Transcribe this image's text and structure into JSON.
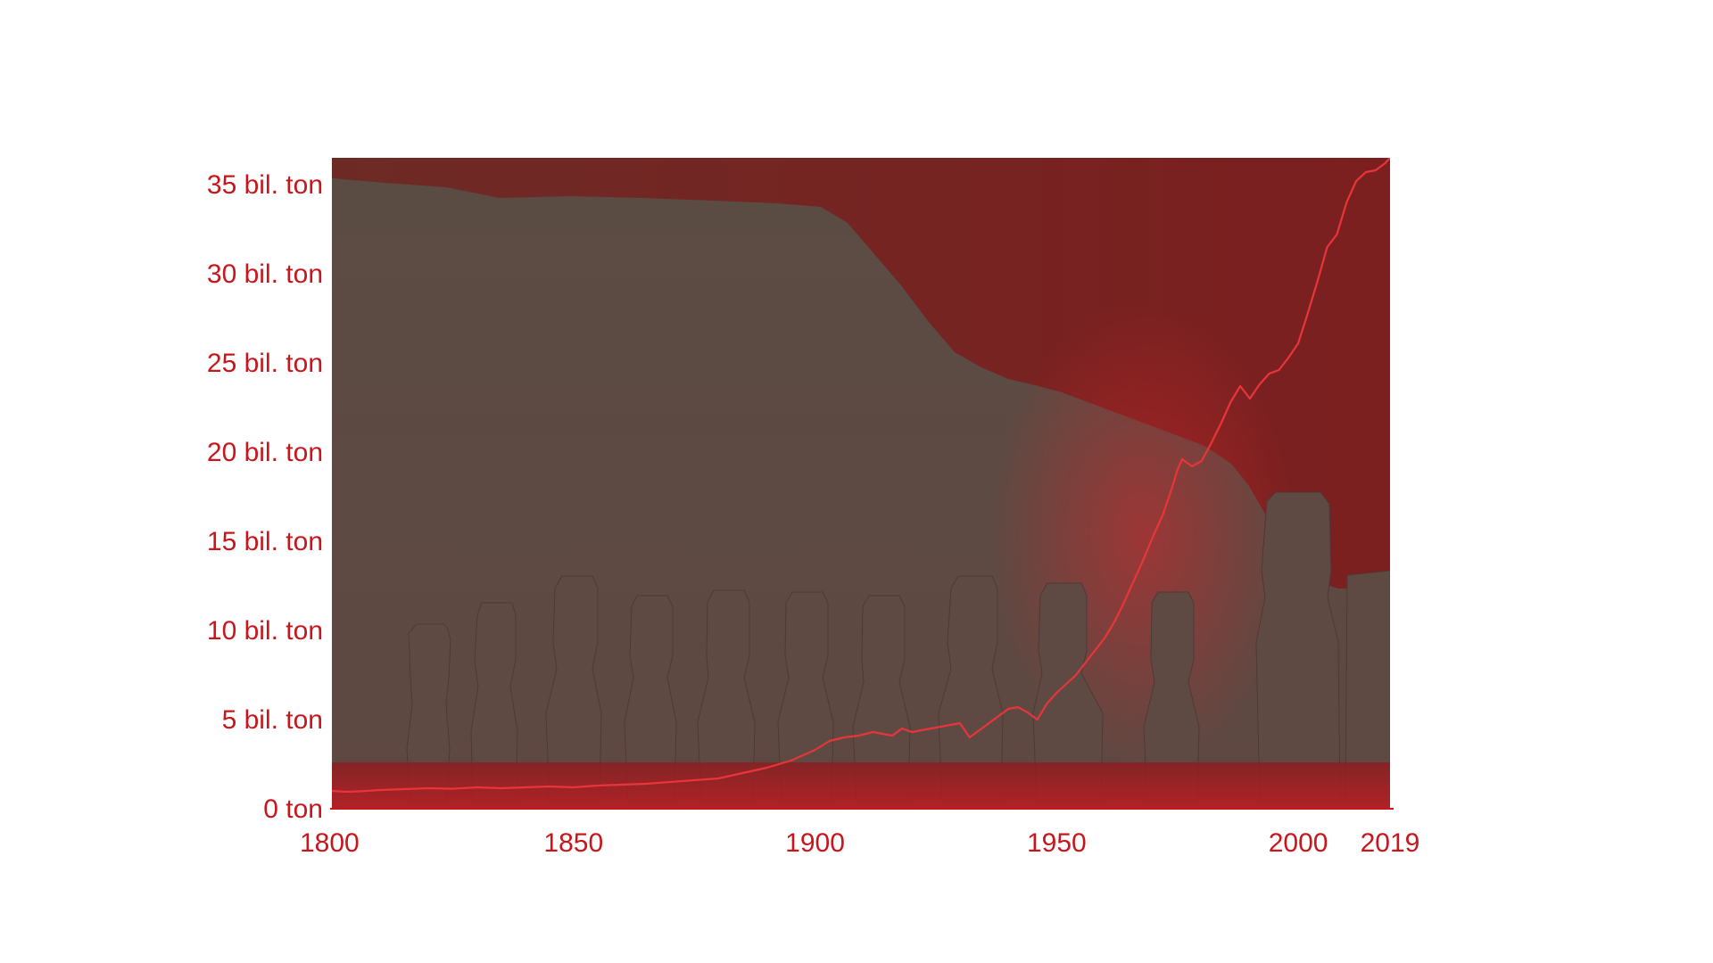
{
  "chart_data": {
    "type": "line",
    "title": "",
    "xlabel": "",
    "ylabel": "",
    "xlim": [
      1800,
      2019
    ],
    "ylim": [
      0,
      36.5
    ],
    "x_ticks": [
      {
        "value": 1800,
        "label": "1800"
      },
      {
        "value": 1850,
        "label": "1850"
      },
      {
        "value": 1900,
        "label": "1900"
      },
      {
        "value": 1950,
        "label": "1950"
      },
      {
        "value": 2000,
        "label": "2000"
      },
      {
        "value": 2019,
        "label": "2019"
      }
    ],
    "y_ticks": [
      {
        "value": 0,
        "label": "0 ton"
      },
      {
        "value": 5,
        "label": "5 bil. ton"
      },
      {
        "value": 10,
        "label": "10 bil. ton"
      },
      {
        "value": 15,
        "label": "15 bil. ton"
      },
      {
        "value": 20,
        "label": "20 bil. ton"
      },
      {
        "value": 25,
        "label": "25 bil. ton"
      },
      {
        "value": 30,
        "label": "30 bil. ton"
      },
      {
        "value": 35,
        "label": "35 bil. ton"
      }
    ],
    "grid": false,
    "legend": "none",
    "background": "photo of moai statues on Easter Island, tinted red",
    "colors": {
      "line": "#e8353a",
      "tick_text": "#c8161d",
      "tint_dark": "#7a2020",
      "tint_mid": "#5a4a42",
      "tint_bright": "#b81c22"
    },
    "series": [
      {
        "x": [
          1800,
          1803,
          1806,
          1810,
          1815,
          1820,
          1825,
          1830,
          1835,
          1840,
          1845,
          1850,
          1855,
          1860,
          1865,
          1870,
          1875,
          1880,
          1885,
          1890,
          1895,
          1900,
          1903,
          1906,
          1909,
          1912,
          1914,
          1916,
          1918,
          1920,
          1922,
          1924,
          1926,
          1928,
          1930,
          1932,
          1934,
          1936,
          1938,
          1940,
          1942,
          1944,
          1946,
          1948,
          1950,
          1952,
          1954,
          1956,
          1958,
          1960,
          1962,
          1964,
          1966,
          1968,
          1970,
          1972,
          1974,
          1975,
          1976,
          1978,
          1980,
          1982,
          1984,
          1986,
          1988,
          1990,
          1992,
          1994,
          1996,
          1998,
          2000,
          2002,
          2004,
          2006,
          2008,
          2010,
          2012,
          2014,
          2016,
          2018,
          2019
        ],
        "y": [
          1.0,
          0.95,
          0.98,
          1.05,
          1.1,
          1.15,
          1.12,
          1.2,
          1.15,
          1.2,
          1.25,
          1.2,
          1.3,
          1.35,
          1.4,
          1.5,
          1.6,
          1.7,
          2.0,
          2.3,
          2.7,
          3.3,
          3.8,
          4.0,
          4.1,
          4.3,
          4.2,
          4.1,
          4.5,
          4.3,
          4.4,
          4.5,
          4.6,
          4.7,
          4.8,
          4.0,
          4.4,
          4.8,
          5.2,
          5.6,
          5.7,
          5.4,
          5.0,
          5.9,
          6.5,
          7.0,
          7.5,
          8.2,
          8.9,
          9.6,
          10.5,
          11.6,
          12.8,
          14.0,
          15.3,
          16.5,
          18.1,
          19.0,
          19.6,
          19.2,
          19.5,
          20.5,
          21.6,
          22.8,
          23.7,
          23.0,
          23.8,
          24.4,
          24.6,
          25.3,
          26.1,
          27.8,
          29.6,
          31.5,
          32.2,
          34.0,
          35.2,
          35.7,
          35.8,
          36.2,
          36.5
        ]
      }
    ]
  }
}
